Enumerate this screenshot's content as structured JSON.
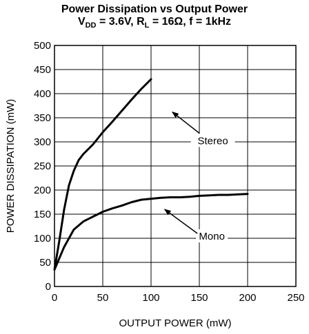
{
  "chart_data": {
    "type": "line",
    "title": {
      "line1": "Power Dissipation vs Output Power",
      "vdd_label": "V",
      "vdd_sub": "DD",
      "vdd_value": " = 3.6V, ",
      "rl_label": "R",
      "rl_sub": "L",
      "rl_value": " = 16Ω, f = 1kHz"
    },
    "xlabel": "OUTPUT POWER (mW)",
    "ylabel": "POWER DISSIPATION (mW)",
    "xlim": [
      0,
      250
    ],
    "ylim": [
      0,
      500
    ],
    "x_ticks": [
      0,
      50,
      100,
      150,
      200,
      250
    ],
    "y_ticks": [
      0,
      50,
      100,
      150,
      200,
      250,
      300,
      350,
      400,
      450,
      500
    ],
    "grid": true,
    "series": [
      {
        "name": "Stereo",
        "points": [
          [
            0,
            35
          ],
          [
            5,
            95
          ],
          [
            10,
            160
          ],
          [
            15,
            210
          ],
          [
            20,
            240
          ],
          [
            25,
            262
          ],
          [
            30,
            275
          ],
          [
            40,
            295
          ],
          [
            50,
            320
          ],
          [
            60,
            342
          ],
          [
            70,
            365
          ],
          [
            80,
            388
          ],
          [
            90,
            410
          ],
          [
            100,
            430
          ]
        ]
      },
      {
        "name": "Mono",
        "points": [
          [
            0,
            35
          ],
          [
            10,
            82
          ],
          [
            20,
            118
          ],
          [
            30,
            135
          ],
          [
            40,
            145
          ],
          [
            50,
            155
          ],
          [
            60,
            162
          ],
          [
            70,
            168
          ],
          [
            80,
            175
          ],
          [
            90,
            180
          ],
          [
            100,
            182
          ],
          [
            110,
            184
          ],
          [
            120,
            185
          ],
          [
            130,
            185
          ],
          [
            140,
            186
          ],
          [
            150,
            188
          ],
          [
            160,
            189
          ],
          [
            170,
            190
          ],
          [
            180,
            190
          ],
          [
            190,
            191
          ],
          [
            200,
            192
          ]
        ]
      }
    ],
    "annotations": [
      {
        "label": "Stereo",
        "text_at": [
          164,
          298
        ],
        "arrow_from": [
          150,
          318
        ],
        "arrow_to": [
          122,
          362
        ]
      },
      {
        "label": "Mono",
        "text_at": [
          163,
          100
        ],
        "arrow_from": [
          148,
          110
        ],
        "arrow_to": [
          114,
          160
        ]
      }
    ]
  }
}
